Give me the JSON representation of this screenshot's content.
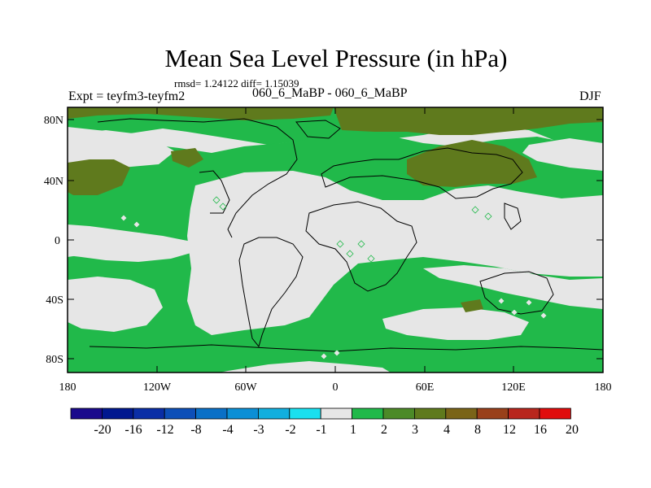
{
  "title": "Mean Sea Level Pressure (in hPa)",
  "stats": "rmsd= 1.24122 diff= 1.15039",
  "experiment": "Expt = teyfm3-teyfm2",
  "subtitle": "060_6_MaBP - 060_6_MaBP",
  "season": "DJF",
  "map": {
    "lat_labels": [
      "80N",
      "40N",
      "0",
      "40S",
      "80S"
    ],
    "lon_labels": [
      "180",
      "120W",
      "60W",
      "0",
      "60E",
      "120E",
      "180"
    ],
    "colors": {
      "background": "#e6e6e6",
      "positive_small": "#21b94a",
      "positive_large": "#5f7a1d",
      "coastline": "#000000"
    }
  },
  "colorbar": {
    "labels": [
      "-20",
      "-16",
      "-12",
      "-8",
      "-4",
      "-3",
      "-2",
      "-1",
      "1",
      "2",
      "3",
      "4",
      "8",
      "12",
      "16",
      "20"
    ],
    "colors": [
      "#1a0a8c",
      "#00188f",
      "#0a2ea6",
      "#0d4fb8",
      "#0a70c7",
      "#0b8fd6",
      "#12afde",
      "#1ae0ef",
      "#e6e6e6",
      "#21b94a",
      "#4c8a28",
      "#5f7a1d",
      "#7a6418",
      "#99401a",
      "#b8261d",
      "#e00d0d"
    ]
  }
}
